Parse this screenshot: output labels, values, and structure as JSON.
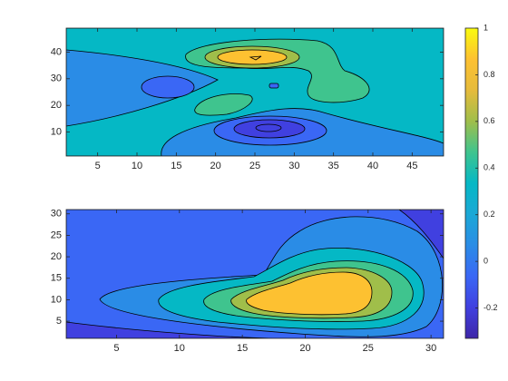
{
  "chart_data": [
    {
      "type": "contour",
      "xlim": [
        1,
        49
      ],
      "ylim": [
        1,
        49
      ],
      "xticks": [
        5,
        10,
        15,
        20,
        25,
        30,
        35,
        40,
        45
      ],
      "yticks": [
        10,
        20,
        30,
        40
      ]
    },
    {
      "type": "contour",
      "xlim": [
        1,
        31
      ],
      "ylim": [
        1,
        31
      ],
      "xticks": [
        5,
        10,
        15,
        20,
        25,
        30
      ],
      "yticks": [
        5,
        10,
        15,
        20,
        25,
        30
      ]
    },
    {
      "type": "colorbar",
      "clim": [
        -0.33,
        1
      ],
      "ticks": [
        -0.2,
        0,
        0.2,
        0.4,
        0.6,
        0.8,
        1
      ],
      "colormap": [
        "#3e26a8",
        "#4040e0",
        "#3a67f5",
        "#2a8ce6",
        "#1ba8d6",
        "#05b8c5",
        "#3fc48e",
        "#a0be4a",
        "#e6bb3c",
        "#fdc131",
        "#f9fb0e"
      ]
    }
  ]
}
